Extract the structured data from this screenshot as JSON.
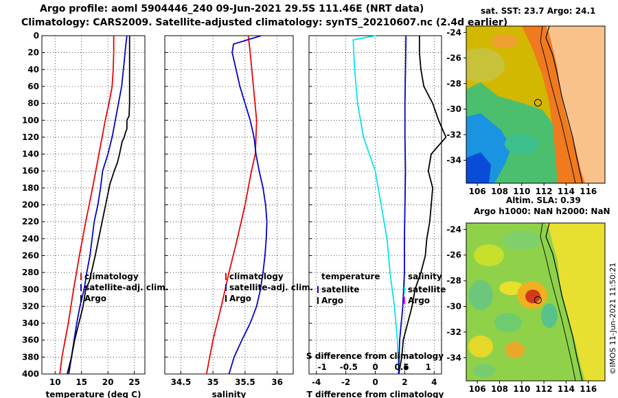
{
  "header": {
    "line1": "Argo profile: aoml 5904446_240 09-Jun-2021 29.5S 111.46E (NRT data)",
    "line2": "Climatology: CARS2009. Satellite-adjusted climatology: synTS_20210607.nc (2.4d earlier)"
  },
  "maps": {
    "sst_title": "sat. SST: 23.7 Argo: 24.1",
    "sla_title1": "Altim. SLA: 0.39",
    "sla_title2": "Argo h1000: NaN h2000: NaN",
    "lat_ticks": [
      "-24",
      "-26",
      "-28",
      "-30",
      "-32",
      "-34"
    ],
    "lon_ticks": [
      "106",
      "108",
      "110",
      "112",
      "114",
      "116"
    ],
    "credit": "©IMOS 11-Jun-2021 11:50:21",
    "argo_lat": -29.5,
    "argo_lon": 111.46
  },
  "colors": {
    "argo": "#000000",
    "satellite": "#0000cc",
    "climatology": "#ee0000",
    "tdiff": "#00e5ee",
    "land": "#f9c28b"
  },
  "chart_data": [
    {
      "type": "line",
      "xlabel": "temperature (deg C)",
      "xlim": [
        7.5,
        27
      ],
      "ylim": [
        0,
        400
      ],
      "xticks": [
        "10",
        "15",
        "20",
        "25"
      ],
      "yticks": [
        "0",
        "20",
        "40",
        "60",
        "80",
        "100",
        "120",
        "140",
        "160",
        "180",
        "200",
        "220",
        "240",
        "260",
        "280",
        "300",
        "320",
        "340",
        "360",
        "380",
        "400"
      ],
      "legend": [
        "climatology",
        "satellite-adj. clim.",
        "Argo"
      ],
      "series": [
        {
          "name": "climatology",
          "depth": [
            0,
            20,
            40,
            60,
            80,
            100,
            140,
            180,
            220,
            260,
            300,
            340,
            380,
            400
          ],
          "values": [
            21.1,
            21.1,
            21.0,
            20.8,
            20.2,
            19.5,
            18.3,
            17.1,
            15.8,
            14.6,
            13.5,
            12.5,
            11.3,
            10.9
          ]
        },
        {
          "name": "satellite-adj. clim.",
          "depth": [
            0,
            10,
            30,
            60,
            80,
            100,
            120,
            140,
            160,
            180,
            200,
            220,
            240,
            260,
            280,
            300,
            320,
            340,
            360,
            380,
            400
          ],
          "values": [
            23.6,
            23.4,
            23.1,
            22.6,
            22.0,
            21.4,
            20.8,
            20.0,
            19.0,
            18.6,
            18.1,
            17.4,
            17.0,
            16.6,
            16.0,
            15.5,
            14.7,
            14.1,
            13.6,
            13.1,
            12.6
          ]
        },
        {
          "name": "Argo",
          "depth": [
            0,
            20,
            40,
            60,
            80,
            95,
            100,
            110,
            115,
            120,
            125,
            140,
            150,
            160,
            175,
            190,
            220,
            260,
            290,
            300,
            320,
            340,
            360,
            380,
            400
          ],
          "values": [
            24.1,
            24.1,
            24.1,
            24.1,
            24.1,
            24.0,
            23.6,
            23.6,
            23.3,
            23.1,
            22.7,
            22.2,
            21.8,
            21.2,
            20.4,
            19.9,
            18.9,
            17.6,
            16.5,
            15.8,
            15.3,
            14.5,
            13.7,
            13.1,
            12.3
          ]
        }
      ]
    },
    {
      "type": "line",
      "xlabel": "salinity",
      "xlim": [
        34.25,
        36.25
      ],
      "ylim": [
        0,
        400
      ],
      "xticks": [
        "34.5",
        "35",
        "35.5",
        "36"
      ],
      "legend": [
        "climatology",
        "satellite-adj. clim.",
        "Argo"
      ],
      "series": [
        {
          "name": "climatology",
          "depth": [
            0,
            20,
            60,
            100,
            140,
            160,
            200,
            240,
            280,
            320,
            360,
            400
          ],
          "values": [
            35.55,
            35.58,
            35.63,
            35.68,
            35.66,
            35.6,
            35.5,
            35.38,
            35.25,
            35.13,
            35.0,
            34.9
          ]
        },
        {
          "name": "satellite-adj. clim.",
          "depth": [
            0,
            10,
            20,
            30,
            40,
            60,
            80,
            100,
            120,
            140,
            160,
            180,
            200,
            220,
            240,
            260,
            280,
            300,
            320,
            340,
            360,
            380,
            400
          ],
          "values": [
            35.75,
            35.32,
            35.3,
            35.33,
            35.36,
            35.42,
            35.5,
            35.58,
            35.64,
            35.67,
            35.72,
            35.78,
            35.82,
            35.84,
            35.83,
            35.81,
            35.78,
            35.74,
            35.68,
            35.58,
            35.45,
            35.33,
            35.25
          ]
        },
        {
          "name": "Argo",
          "depth": [],
          "values": []
        }
      ]
    },
    {
      "type": "line",
      "xlabel": "T difference from climatology",
      "xlabel2": "S difference from climatology",
      "xlim": [
        -4.5,
        4.5
      ],
      "x2lim": [
        -1.25,
        1.25
      ],
      "ylim": [
        0,
        400
      ],
      "xticks": [
        "-4",
        "-2",
        "0",
        "2",
        "4"
      ],
      "x2ticks": [
        "-1",
        "-0.5",
        "0",
        "0.5",
        "1"
      ],
      "legend_left_title": "temperature",
      "legend_right_title": "salinity",
      "legend_entries": [
        "satellite",
        "Argo"
      ],
      "series": [
        {
          "name": "temperature satellite",
          "depth": [
            0,
            5,
            40,
            80,
            120,
            160,
            200,
            240,
            280,
            320,
            360,
            400
          ],
          "values": [
            0.05,
            -1.5,
            -1.4,
            -1.2,
            -0.8,
            0.0,
            0.4,
            0.8,
            1.0,
            1.3,
            1.5,
            1.6
          ]
        },
        {
          "name": "temperature Argo",
          "depth": [
            0,
            20,
            40,
            60,
            80,
            100,
            120,
            140,
            160,
            180,
            200,
            220,
            240,
            260,
            280,
            300,
            320,
            340,
            360,
            380,
            400
          ],
          "values": [
            3.0,
            3.0,
            3.1,
            3.3,
            3.9,
            4.3,
            4.8,
            3.8,
            3.6,
            3.9,
            3.8,
            3.7,
            3.5,
            3.4,
            3.1,
            2.7,
            2.5,
            2.2,
            1.9,
            1.8,
            1.6
          ]
        },
        {
          "name": "salinity satellite",
          "depth": [
            0,
            40,
            80,
            120,
            160,
            200,
            240,
            280,
            320,
            360,
            400
          ],
          "values": [
            0.58,
            0.57,
            0.56,
            0.56,
            0.57,
            0.56,
            0.55,
            0.55,
            0.52,
            0.46,
            0.44
          ]
        },
        {
          "name": "salinity Argo",
          "depth": [],
          "values": []
        }
      ]
    }
  ]
}
